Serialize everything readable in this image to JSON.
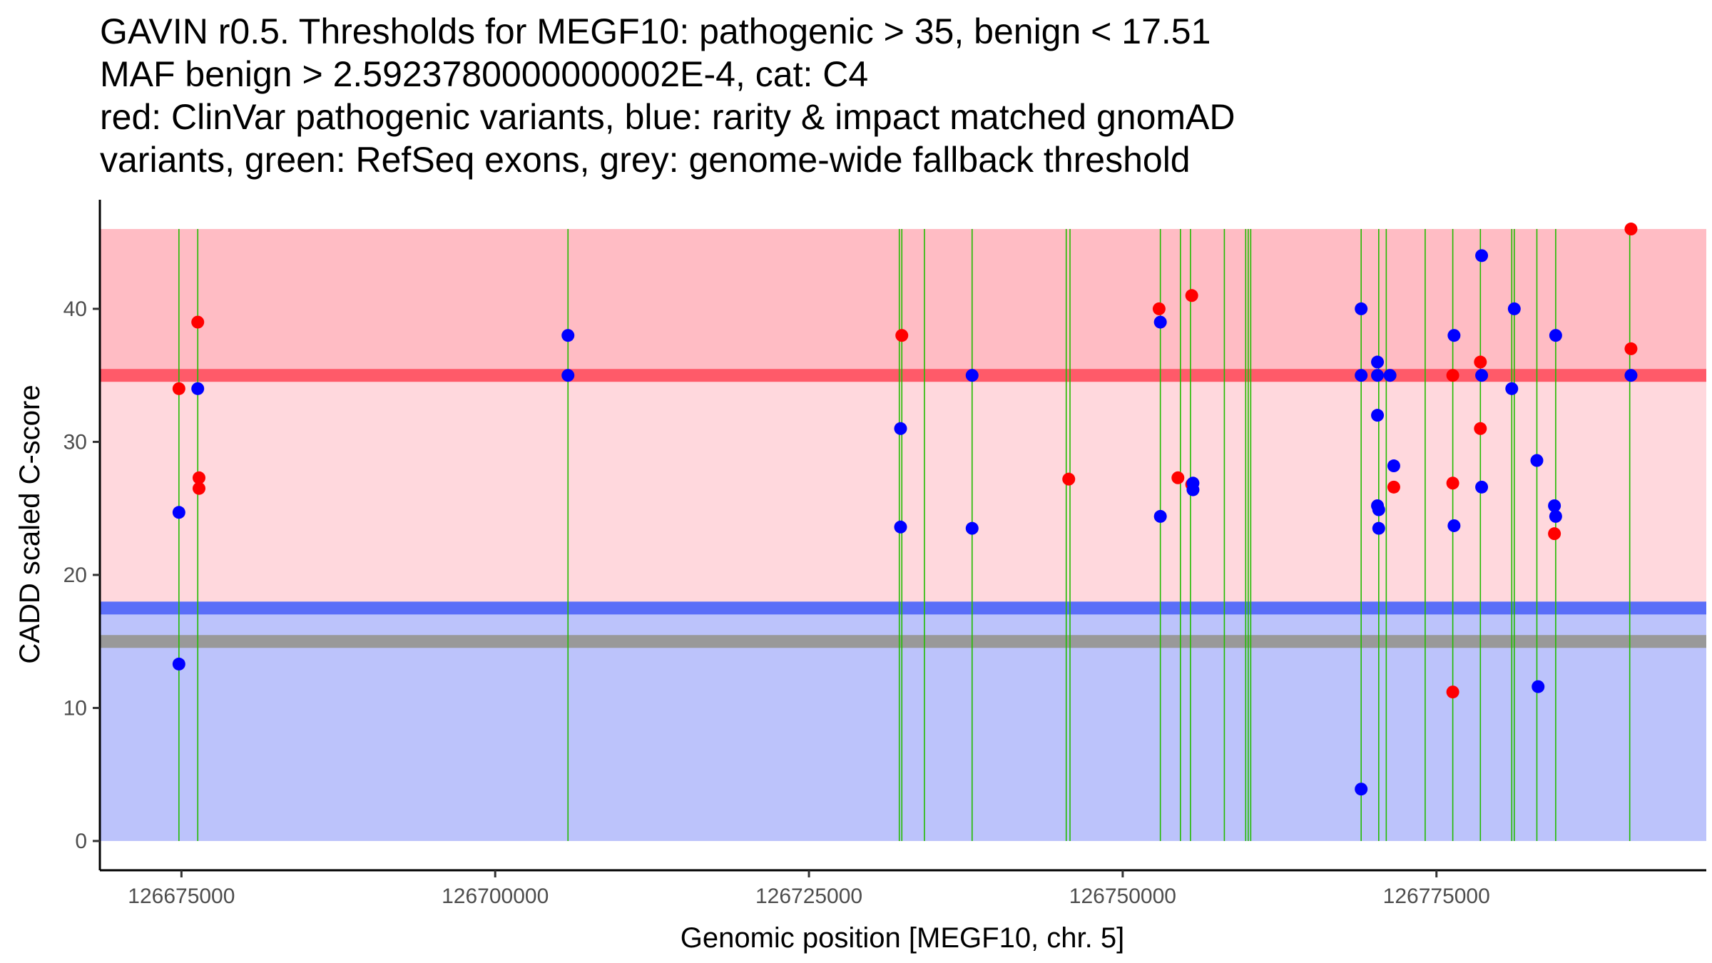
{
  "chart_data": {
    "type": "scatter",
    "title_lines": [
      "GAVIN r0.5. Thresholds for MEGF10: pathogenic > 35, benign < 17.51",
      "MAF benign > 2.5923780000000002E-4, cat: C4",
      "red: ClinVar pathogenic variants, blue: rarity & impact matched gnomAD",
      "variants, green: RefSeq exons, grey: genome-wide fallback threshold"
    ],
    "xlabel": "Genomic position [MEGF10, chr. 5]",
    "ylabel": "CADD scaled C-score",
    "xlim": [
      126668500,
      126796500
    ],
    "ylim": [
      -2.2,
      48.2
    ],
    "x_ticks": [
      126675000,
      126700000,
      126725000,
      126750000,
      126775000
    ],
    "y_ticks": [
      0,
      10,
      20,
      30,
      40
    ],
    "colors": {
      "pathogenic_zone": "#ffbcc4",
      "vus_zone": "#ffd8dd",
      "benign_zone": "#bcc3fb",
      "pathogenic_threshold": "#ff5a69",
      "benign_threshold": "#5a6ef8",
      "fallback_threshold": "#999999",
      "clinvar": "#ff0000",
      "gnomad": "#0000ff",
      "exon": "#22bb00"
    },
    "regions": [
      {
        "name": "pathogenic",
        "y_from": 35,
        "y_to": 46
      },
      {
        "name": "uncertain",
        "y_from": 17.51,
        "y_to": 35
      },
      {
        "name": "benign",
        "y_from": 0,
        "y_to": 17.51
      }
    ],
    "thresholds": {
      "pathogenic": 35,
      "benign": 17.51,
      "fallback": 15
    },
    "exon_positions": [
      126674800,
      126676300,
      126705800,
      126732200,
      126732400,
      126734200,
      126738000,
      126745500,
      126745800,
      126753000,
      126754600,
      126755400,
      126758100,
      126759800,
      126760000,
      126760200,
      126769000,
      126770400,
      126771000,
      126774100,
      126776300,
      126778500,
      126781000,
      126781200,
      126783000,
      126784500,
      126790400
    ],
    "series": [
      {
        "name": "ClinVar pathogenic",
        "color": "#ff0000",
        "points": [
          [
            126674800,
            34
          ],
          [
            126676300,
            39
          ],
          [
            126676400,
            27.3
          ],
          [
            126676400,
            26.5
          ],
          [
            126732400,
            38
          ],
          [
            126745700,
            27.2
          ],
          [
            126752900,
            40
          ],
          [
            126754400,
            27.3
          ],
          [
            126755500,
            41
          ],
          [
            126755500,
            26.8
          ],
          [
            126771600,
            26.6
          ],
          [
            126776300,
            35
          ],
          [
            126776300,
            26.9
          ],
          [
            126776300,
            11.2
          ],
          [
            126778500,
            36
          ],
          [
            126778500,
            31
          ],
          [
            126784400,
            23.1
          ],
          [
            126790500,
            46
          ],
          [
            126790500,
            37
          ]
        ]
      },
      {
        "name": "gnomAD matched",
        "color": "#0000ff",
        "points": [
          [
            126674800,
            24.7
          ],
          [
            126674800,
            13.3
          ],
          [
            126676300,
            34
          ],
          [
            126705800,
            38
          ],
          [
            126705800,
            35
          ],
          [
            126732300,
            31
          ],
          [
            126732300,
            23.6
          ],
          [
            126738000,
            35
          ],
          [
            126738000,
            23.5
          ],
          [
            126753000,
            39
          ],
          [
            126753000,
            24.4
          ],
          [
            126755600,
            26.9
          ],
          [
            126755600,
            26.4
          ],
          [
            126769000,
            40
          ],
          [
            126769000,
            35
          ],
          [
            126769000,
            3.9
          ],
          [
            126770300,
            36
          ],
          [
            126770300,
            35
          ],
          [
            126770300,
            32
          ],
          [
            126770300,
            25.2
          ],
          [
            126770400,
            24.9
          ],
          [
            126770400,
            23.5
          ],
          [
            126771300,
            35
          ],
          [
            126771600,
            28.2
          ],
          [
            126776400,
            38
          ],
          [
            126776400,
            23.7
          ],
          [
            126778600,
            44
          ],
          [
            126778600,
            35
          ],
          [
            126778600,
            26.6
          ],
          [
            126781000,
            34
          ],
          [
            126781200,
            40
          ],
          [
            126783000,
            28.6
          ],
          [
            126783100,
            11.6
          ],
          [
            126784500,
            38
          ],
          [
            126784400,
            25.2
          ],
          [
            126784500,
            24.4
          ],
          [
            126790500,
            35
          ]
        ]
      }
    ]
  }
}
